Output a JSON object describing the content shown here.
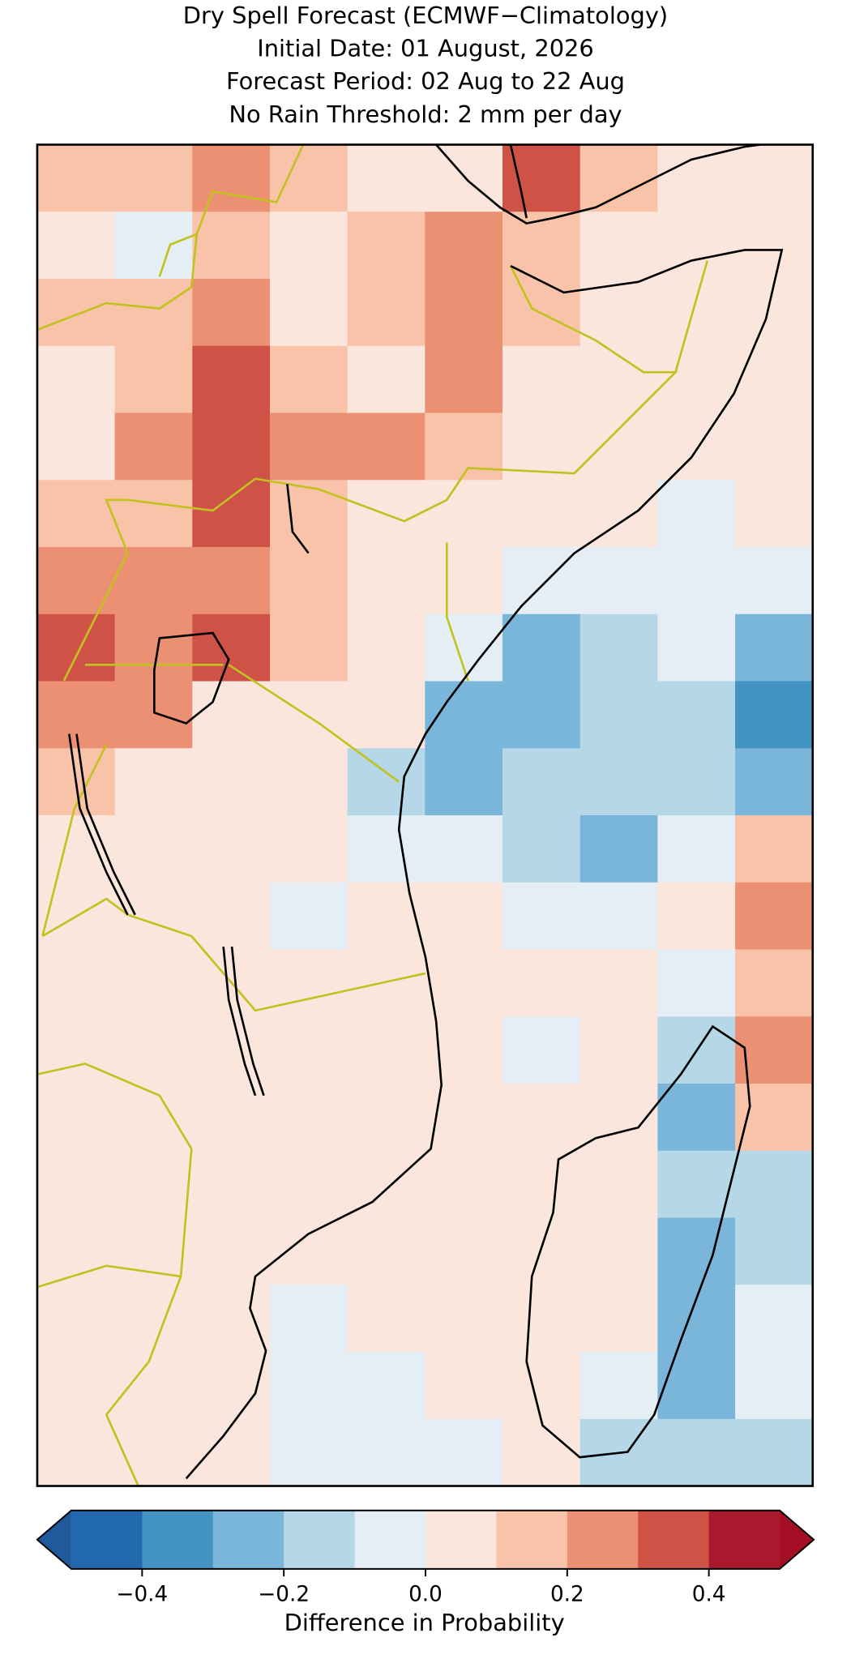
{
  "title": [
    "Dry Spell Forecast (ECMWF−Climatology)",
    "Initial Date: 01 August, 2026",
    "Forecast Period: 02 Aug to 22 Aug",
    "No Rain Threshold: 2 mm per day"
  ],
  "map": {
    "type": "raster",
    "values": [
      [
        0.15,
        0.15,
        0.25,
        0.15,
        0.05,
        0.05,
        0.35,
        0.15,
        0.05,
        0.05
      ],
      [
        0.05,
        -0.05,
        0.15,
        0.05,
        0.15,
        0.25,
        0.15,
        0.05,
        0.05,
        0.05
      ],
      [
        0.15,
        0.15,
        0.25,
        0.05,
        0.15,
        0.25,
        0.15,
        0.05,
        0.05,
        0.05
      ],
      [
        0.05,
        0.15,
        0.35,
        0.15,
        0.05,
        0.25,
        0.05,
        0.05,
        0.05,
        0.05
      ],
      [
        0.05,
        0.25,
        0.35,
        0.25,
        0.25,
        0.15,
        0.05,
        0.05,
        0.05,
        0.05
      ],
      [
        0.15,
        0.15,
        0.35,
        0.15,
        0.05,
        0.05,
        0.05,
        0.05,
        -0.05,
        0.05
      ],
      [
        0.25,
        0.25,
        0.25,
        0.15,
        0.05,
        0.05,
        -0.05,
        -0.05,
        -0.05,
        -0.05
      ],
      [
        0.35,
        0.25,
        0.35,
        0.15,
        0.05,
        -0.05,
        -0.25,
        -0.15,
        -0.05,
        -0.25
      ],
      [
        0.25,
        0.25,
        0.05,
        0.05,
        0.05,
        -0.25,
        -0.25,
        -0.15,
        -0.15,
        -0.35
      ],
      [
        0.15,
        0.05,
        0.05,
        0.05,
        -0.15,
        -0.25,
        -0.15,
        -0.15,
        -0.15,
        -0.25
      ],
      [
        0.05,
        0.05,
        0.05,
        0.05,
        -0.05,
        -0.05,
        -0.15,
        -0.25,
        -0.05,
        0.15
      ],
      [
        0.05,
        0.05,
        0.05,
        -0.05,
        0.05,
        0.05,
        -0.05,
        -0.05,
        0.05,
        0.25
      ],
      [
        0.05,
        0.05,
        0.05,
        0.05,
        0.05,
        0.05,
        0.05,
        0.05,
        -0.05,
        0.15
      ],
      [
        0.05,
        0.05,
        0.05,
        0.05,
        0.05,
        0.05,
        -0.05,
        0.05,
        -0.15,
        0.25
      ],
      [
        0.05,
        0.05,
        0.05,
        0.05,
        0.05,
        0.05,
        0.05,
        0.05,
        -0.25,
        0.15
      ],
      [
        0.05,
        0.05,
        0.05,
        0.05,
        0.05,
        0.05,
        0.05,
        0.05,
        -0.15,
        -0.15
      ],
      [
        0.05,
        0.05,
        0.05,
        0.05,
        0.05,
        0.05,
        0.05,
        0.05,
        -0.25,
        -0.15
      ],
      [
        0.05,
        0.05,
        0.05,
        -0.05,
        0.05,
        0.05,
        0.05,
        0.05,
        -0.25,
        -0.05
      ],
      [
        0.05,
        0.05,
        0.05,
        -0.05,
        -0.05,
        0.05,
        0.05,
        -0.05,
        -0.25,
        -0.05
      ],
      [
        0.05,
        0.05,
        0.05,
        -0.05,
        -0.05,
        -0.05,
        0.05,
        -0.15,
        -0.15,
        -0.15
      ]
    ]
  },
  "colorbar": {
    "levels": [
      -0.5,
      -0.4,
      -0.3,
      -0.2,
      -0.1,
      0,
      0.1,
      0.2,
      0.3,
      0.4,
      0.5
    ],
    "colors": [
      "#2369ad",
      "#4393c3",
      "#7ab6d9",
      "#b6d7e8",
      "#e4eef4",
      "#fae6dc",
      "#f8c3a9",
      "#eb9072",
      "#cf5246",
      "#a8192d"
    ],
    "under_color": "#1f5a9c",
    "over_color": "#a50f25",
    "ticks": [
      {
        "value": -0.4,
        "label": "−0.4"
      },
      {
        "value": -0.2,
        "label": "−0.2"
      },
      {
        "value": 0,
        "label": "0.0"
      },
      {
        "value": 0.2,
        "label": "0.2"
      },
      {
        "value": 0.4,
        "label": "0.4"
      }
    ],
    "label": "Difference in Probability"
  }
}
